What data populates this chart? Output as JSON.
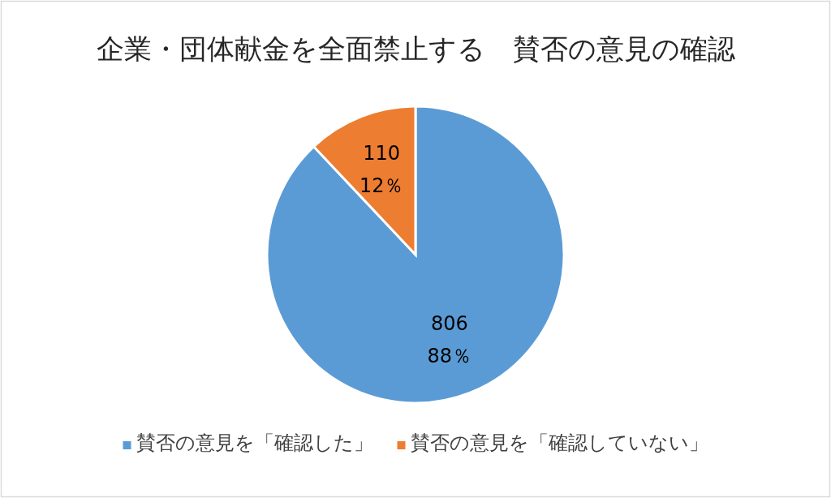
{
  "chart_data": {
    "type": "pie",
    "title": "企業・団体献金を全面禁止する　賛否の意見の確認",
    "categories": [
      "賛否の意見を「確認した」",
      "賛否の意見を「確認していない」"
    ],
    "values": [
      806,
      110
    ],
    "colors": [
      "#5b9bd5",
      "#ed7d31"
    ],
    "value_labels": [
      "806\n88％",
      "110\n12％"
    ],
    "legend": "bottom"
  }
}
